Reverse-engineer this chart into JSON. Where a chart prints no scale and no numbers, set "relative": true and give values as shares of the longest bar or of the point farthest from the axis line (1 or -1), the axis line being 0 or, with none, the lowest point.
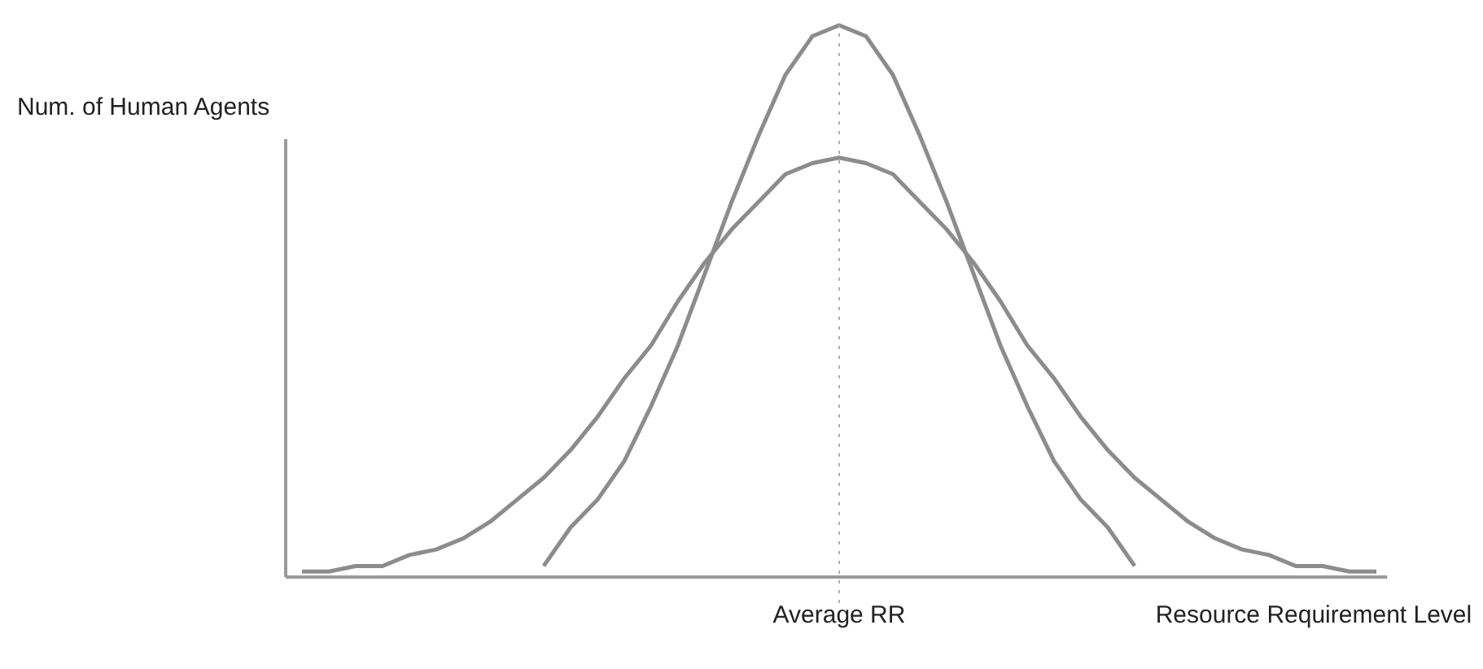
{
  "chart_data": {
    "type": "line",
    "relative": true,
    "grid": false,
    "ylabel": "Num. of Human Agents",
    "xlabel": "Resource Requirement Level",
    "categories": [
      null,
      null,
      null,
      null,
      null,
      null,
      null,
      null,
      null,
      null,
      null,
      null,
      null,
      null,
      null,
      null,
      null,
      null,
      null,
      null,
      null,
      null,
      null,
      null,
      null,
      null,
      null,
      null,
      null,
      null,
      null,
      null,
      null,
      null,
      null,
      null,
      null,
      null,
      null,
      null,
      null
    ],
    "series": [
      {
        "color": "#8c8c8c",
        "values": [
          0.01,
          0.01,
          0.02,
          0.02,
          0.04,
          0.05,
          0.07,
          0.1,
          0.14,
          0.18,
          0.23,
          0.29,
          0.36,
          0.42,
          0.5,
          0.57,
          0.63,
          0.68,
          0.73,
          0.75,
          0.76,
          0.75,
          0.73,
          0.68,
          0.63,
          0.57,
          0.5,
          0.42,
          0.36,
          0.29,
          0.23,
          0.18,
          0.14,
          0.1,
          0.07,
          0.05,
          0.04,
          0.02,
          0.02,
          0.01,
          0.01
        ]
      },
      {
        "color": "#8c8c8c",
        "values": [
          null,
          null,
          null,
          null,
          null,
          null,
          null,
          null,
          null,
          0.02,
          0.09,
          0.14,
          0.21,
          0.31,
          0.42,
          0.55,
          0.68,
          0.8,
          0.91,
          0.98,
          1,
          0.98,
          0.91,
          0.8,
          0.68,
          0.55,
          0.42,
          0.31,
          0.21,
          0.14,
          0.09,
          0.02,
          null,
          null,
          null,
          null,
          null,
          null,
          null,
          null,
          null
        ]
      }
    ],
    "annotations": [
      "Average RR"
    ]
  }
}
